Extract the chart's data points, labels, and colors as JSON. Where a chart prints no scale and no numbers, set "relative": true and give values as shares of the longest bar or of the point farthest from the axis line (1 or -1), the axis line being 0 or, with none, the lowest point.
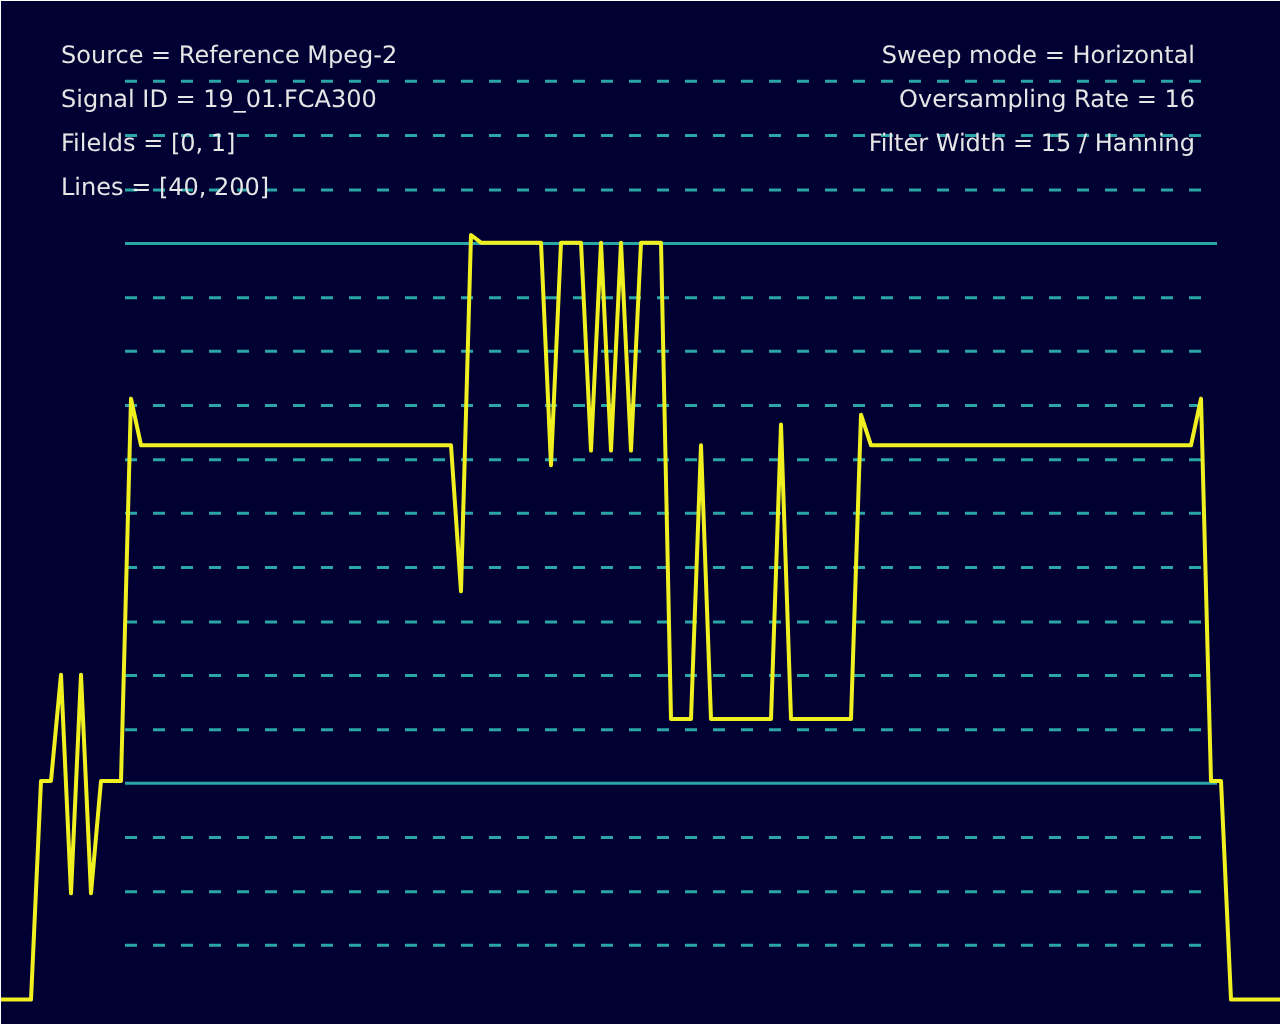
{
  "chart_data": {
    "type": "line",
    "relative": true,
    "line_style": "solid",
    "ref_lines": [
      {
        "axis": "y",
        "value": 0.071,
        "color": "#2aa6a6",
        "line_style": "dashed"
      },
      {
        "axis": "y",
        "value": 0.141,
        "color": "#2aa6a6",
        "line_style": "dashed"
      },
      {
        "axis": "y",
        "value": 0.212,
        "color": "#2aa6a6",
        "line_style": "dashed"
      },
      {
        "axis": "y",
        "value": 0.283,
        "color": "#2aa6a6",
        "line_style": "solid"
      },
      {
        "axis": "y",
        "value": 0.353,
        "color": "#2aa6a6",
        "line_style": "dashed"
      },
      {
        "axis": "y",
        "value": 0.424,
        "color": "#2aa6a6",
        "line_style": "dashed"
      },
      {
        "axis": "y",
        "value": 0.494,
        "color": "#2aa6a6",
        "line_style": "dashed"
      },
      {
        "axis": "y",
        "value": 0.565,
        "color": "#2aa6a6",
        "line_style": "dashed"
      },
      {
        "axis": "y",
        "value": 0.636,
        "color": "#2aa6a6",
        "line_style": "dashed"
      },
      {
        "axis": "y",
        "value": 0.706,
        "color": "#2aa6a6",
        "line_style": "dashed"
      },
      {
        "axis": "y",
        "value": 0.777,
        "color": "#2aa6a6",
        "line_style": "dashed"
      },
      {
        "axis": "y",
        "value": 0.848,
        "color": "#2aa6a6",
        "line_style": "dashed"
      },
      {
        "axis": "y",
        "value": 0.918,
        "color": "#2aa6a6",
        "line_style": "dashed"
      },
      {
        "axis": "y",
        "value": 0.989,
        "color": "#2aa6a6",
        "line_style": "solid"
      },
      {
        "axis": "y",
        "value": 1.059,
        "color": "#2aa6a6",
        "line_style": "dashed"
      },
      {
        "axis": "y",
        "value": 1.13,
        "color": "#2aa6a6",
        "line_style": "dashed"
      },
      {
        "axis": "y",
        "value": 1.201,
        "color": "#2aa6a6",
        "line_style": "dashed"
      }
    ],
    "annotations": [
      "Source = Reference Mpeg-2",
      "Signal ID = 19_01.FCA300",
      "Filelds = [0, 1]",
      "Lines = [40, 200]",
      "Sweep mode = Horizontal",
      "Oversampling Rate = 16",
      "Filter Width = 15 / Hanning"
    ],
    "categories": [
      null,
      null,
      null,
      null,
      null,
      null,
      null,
      null,
      null,
      null,
      null,
      null,
      null,
      null,
      null,
      null,
      null,
      null,
      null,
      null,
      null,
      null,
      null,
      null,
      null,
      null,
      null,
      null,
      null,
      null,
      null,
      null,
      null,
      null,
      null,
      null,
      null,
      null,
      null,
      null,
      null,
      null,
      null,
      null,
      null,
      null,
      null,
      null,
      null,
      null,
      null,
      null,
      null,
      null,
      null,
      null,
      null,
      null,
      null,
      null,
      null,
      null,
      null,
      null,
      null,
      null,
      null,
      null,
      null,
      null,
      null,
      null,
      null,
      null,
      null,
      null,
      null,
      null,
      null,
      null,
      null,
      null,
      null,
      null,
      null,
      null,
      null,
      null,
      null,
      null,
      null,
      null,
      null,
      null,
      null,
      null,
      null,
      null,
      null,
      null,
      null,
      null,
      null,
      null,
      null,
      null,
      null,
      null,
      null,
      null,
      null,
      null,
      null,
      null,
      null,
      null,
      null,
      null,
      null,
      null,
      null,
      null,
      null,
      null,
      null,
      null,
      null,
      null,
      null
    ],
    "series": [
      {
        "color": "#f0f020",
        "values": [
          0,
          0,
          0,
          0,
          0.286,
          0.286,
          0.425,
          0.139,
          0.425,
          0.139,
          0.286,
          0.286,
          0.286,
          0.786,
          0.725,
          0.725,
          0.725,
          0.725,
          0.725,
          0.725,
          0.725,
          0.725,
          0.725,
          0.725,
          0.725,
          0.725,
          0.725,
          0.725,
          0.725,
          0.725,
          0.725,
          0.725,
          0.725,
          0.725,
          0.725,
          0.725,
          0.725,
          0.725,
          0.725,
          0.725,
          0.725,
          0.725,
          0.725,
          0.725,
          0.725,
          0.725,
          0.534,
          1,
          0.99,
          0.99,
          0.99,
          0.99,
          0.99,
          0.99,
          0.99,
          0.699,
          0.99,
          0.99,
          0.99,
          0.718,
          0.99,
          0.718,
          0.99,
          0.718,
          0.99,
          0.99,
          0.99,
          0.367,
          0.367,
          0.367,
          0.725,
          0.367,
          0.367,
          0.367,
          0.367,
          0.367,
          0.367,
          0.367,
          0.752,
          0.367,
          0.367,
          0.367,
          0.367,
          0.367,
          0.367,
          0.367,
          0.765,
          0.725,
          0.725,
          0.725,
          0.725,
          0.725,
          0.725,
          0.725,
          0.725,
          0.725,
          0.725,
          0.725,
          0.725,
          0.725,
          0.725,
          0.725,
          0.725,
          0.725,
          0.725,
          0.725,
          0.725,
          0.725,
          0.725,
          0.725,
          0.725,
          0.725,
          0.725,
          0.725,
          0.725,
          0.725,
          0.725,
          0.725,
          0.725,
          0.725,
          0.786,
          0.286,
          0.286,
          0,
          0,
          0,
          0,
          0,
          0
        ]
      }
    ]
  }
}
